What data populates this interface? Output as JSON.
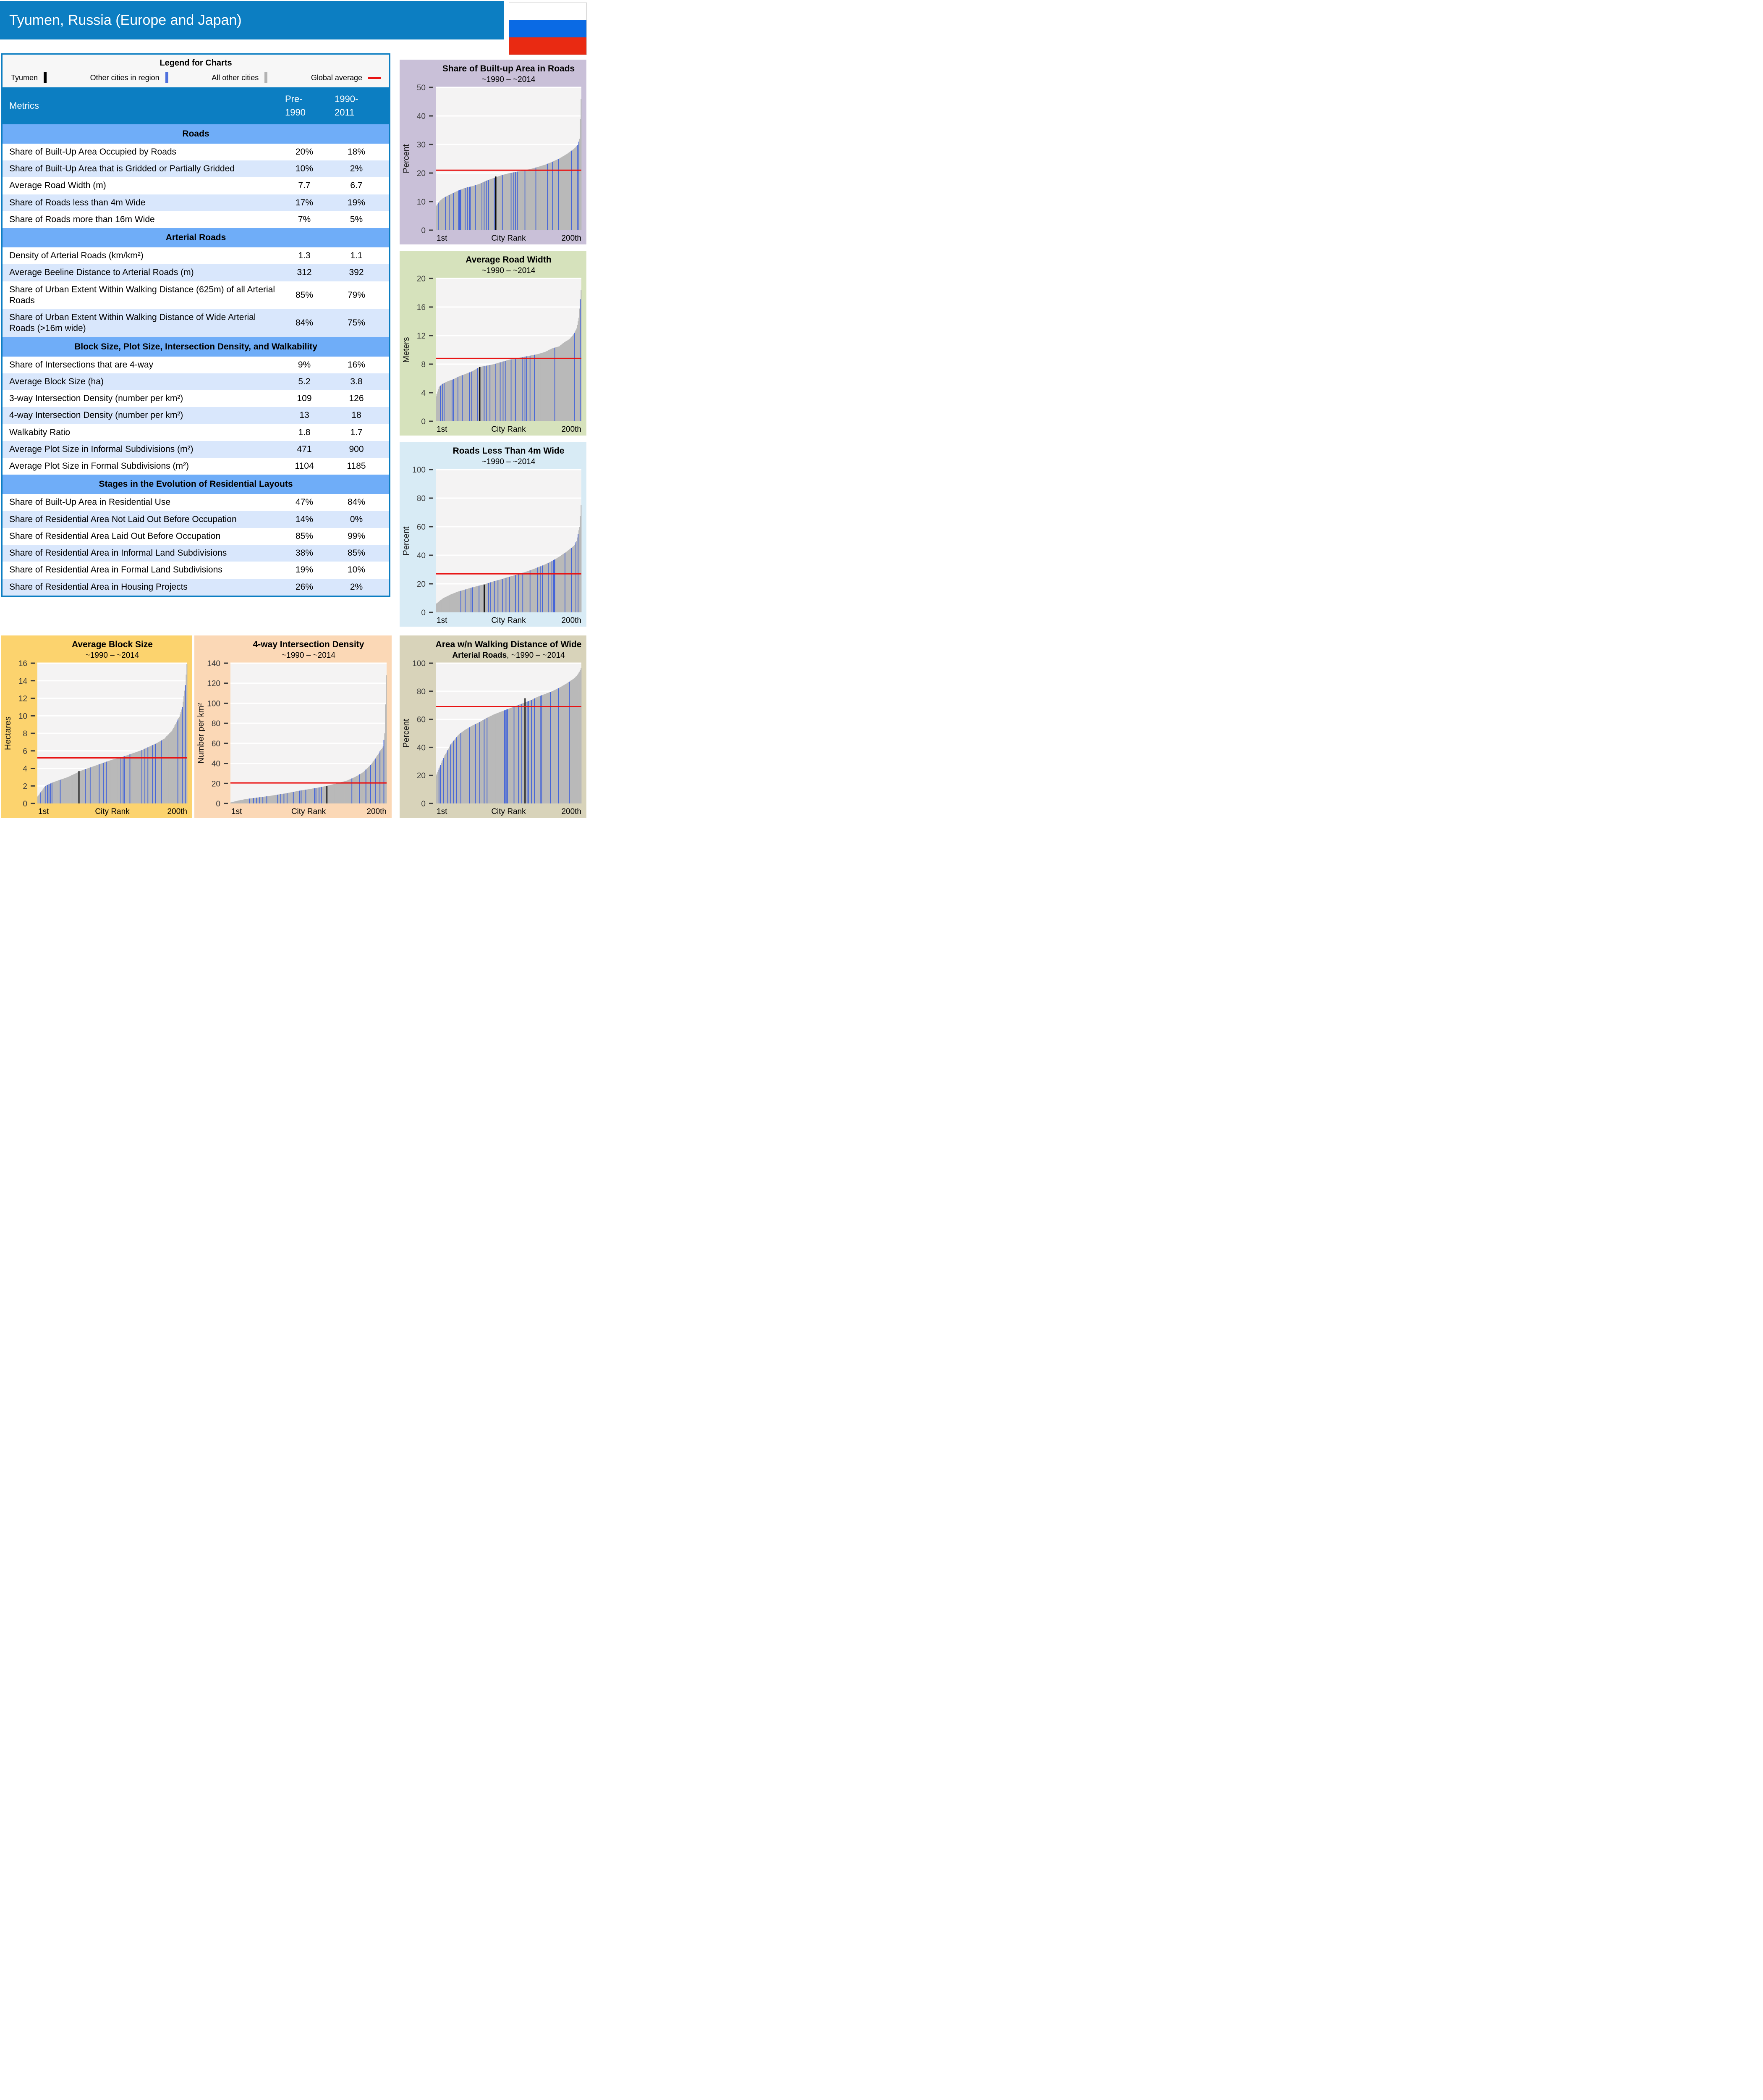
{
  "header": {
    "title": "Tyumen, Russia (Europe and Japan)",
    "flag_icon": "russia-flag",
    "flag_colors": [
      "#ffffff",
      "#0a6ae4",
      "#e92a12"
    ]
  },
  "colors": {
    "header_blue": "#0c7ec2",
    "section_blue": "#6fadf8",
    "row_alt_blue": "#d9e7fc",
    "bar_gray": "#b9b9b9",
    "bar_blue": "#4565d8",
    "bar_black": "#000000",
    "avg_red": "#e81313",
    "plot_bg": "#f4f3f3",
    "grid_white": "#ffffff",
    "tick_text": "#3c3c3c"
  },
  "legend": {
    "title": "Legend for Charts",
    "items": [
      {
        "label": "Tyumen",
        "color": "#000000",
        "shape": "bar"
      },
      {
        "label": "Other cities in region",
        "color": "#4f70dd",
        "shape": "bar"
      },
      {
        "label": "All other cities",
        "color": "#b3b3b3",
        "shape": "bar"
      },
      {
        "label": "Global average",
        "color": "#e81313",
        "shape": "line"
      }
    ]
  },
  "table": {
    "header": {
      "metrics": "Metrics",
      "col1": "Pre-\n1990",
      "col2": "1990-\n2011"
    },
    "sections": [
      {
        "title": "Roads",
        "rows": [
          {
            "label": "Share of Built-Up Area Occupied by Roads",
            "pre1990": "20%",
            "y1990_2011": "18%"
          },
          {
            "label": "Share of Built-Up Area that is Gridded or Partially Gridded",
            "pre1990": "10%",
            "y1990_2011": "2%"
          },
          {
            "label": "Average Road Width (m)",
            "pre1990": "7.7",
            "y1990_2011": "6.7"
          },
          {
            "label": "Share of Roads less than 4m Wide",
            "pre1990": "17%",
            "y1990_2011": "19%"
          },
          {
            "label": "Share of Roads more than 16m Wide",
            "pre1990": "7%",
            "y1990_2011": "5%"
          }
        ]
      },
      {
        "title": "Arterial Roads",
        "rows": [
          {
            "label": "Density of Arterial Roads (km/km²)",
            "pre1990": "1.3",
            "y1990_2011": "1.1"
          },
          {
            "label": "Average Beeline Distance to Arterial Roads (m)",
            "pre1990": "312",
            "y1990_2011": "392"
          },
          {
            "label": "Share of Urban Extent Within Walking Distance (625m) of all Arterial Roads",
            "pre1990": "85%",
            "y1990_2011": "79%"
          },
          {
            "label": "Share of Urban Extent Within Walking Distance of Wide Arterial Roads (>16m wide)",
            "pre1990": "84%",
            "y1990_2011": "75%"
          }
        ]
      },
      {
        "title": "Block Size, Plot Size, Intersection Density, and Walkability",
        "rows": [
          {
            "label": "Share of Intersections that are 4-way",
            "pre1990": "9%",
            "y1990_2011": "16%"
          },
          {
            "label": "Average Block Size (ha)",
            "pre1990": "5.2",
            "y1990_2011": "3.8"
          },
          {
            "label": "3-way Intersection Density (number per km²)",
            "pre1990": "109",
            "y1990_2011": "126"
          },
          {
            "label": "4-way Intersection Density (number per km²)",
            "pre1990": "13",
            "y1990_2011": "18"
          },
          {
            "label": "Walkabity Ratio",
            "pre1990": "1.8",
            "y1990_2011": "1.7"
          },
          {
            "label": "Average Plot Size in Informal Subdivisions (m²)",
            "pre1990": "471",
            "y1990_2011": "900"
          },
          {
            "label": "Average Plot Size in Formal Subdivisions (m²)",
            "pre1990": "1104",
            "y1990_2011": "1185"
          }
        ]
      },
      {
        "title": "Stages in the Evolution of Residential Layouts",
        "rows": [
          {
            "label": "Share of Built-Up Area in Residential Use",
            "pre1990": "47%",
            "y1990_2011": "84%"
          },
          {
            "label": "Share of Residential Area Not Laid Out Before Occupation",
            "pre1990": "14%",
            "y1990_2011": "0%"
          },
          {
            "label": "Share of Residential Area Laid Out Before Occupation",
            "pre1990": "85%",
            "y1990_2011": "99%"
          },
          {
            "label": "Share of Residential Area in Informal Land Subdivisions",
            "pre1990": "38%",
            "y1990_2011": "85%"
          },
          {
            "label": "Share of Residential Area in Formal Land Subdivisions",
            "pre1990": "19%",
            "y1990_2011": "10%"
          },
          {
            "label": "Share of Residential Area in Housing Projects",
            "pre1990": "26%",
            "y1990_2011": "2%"
          }
        ]
      }
    ]
  },
  "chart_data": [
    {
      "id": "share-built-up-area-in-roads",
      "type": "bar",
      "title": "Share of Built-up Area in Roads",
      "subtitle": "~1990 – ~2014",
      "panel_bg": "#c9c0d8",
      "ylabel": "Percent",
      "ylim": [
        0,
        50
      ],
      "yticks": [
        0,
        10,
        20,
        30,
        40,
        50
      ],
      "xlabels": {
        "left": "1st",
        "center": "City Rank",
        "right": "200th"
      },
      "global_average": 21,
      "tyumen": {
        "frac": 0.41,
        "value": 18.8
      },
      "profile": [
        [
          0,
          8.5
        ],
        [
          0.02,
          10
        ],
        [
          0.05,
          11.3
        ],
        [
          0.1,
          12.6
        ],
        [
          0.15,
          13.8
        ],
        [
          0.2,
          14.8
        ],
        [
          0.25,
          15.4
        ],
        [
          0.3,
          16.2
        ],
        [
          0.35,
          17.4
        ],
        [
          0.4,
          18.3
        ],
        [
          0.45,
          19.2
        ],
        [
          0.5,
          19.9
        ],
        [
          0.55,
          20.4
        ],
        [
          0.6,
          20.9
        ],
        [
          0.65,
          21.4
        ],
        [
          0.7,
          22.1
        ],
        [
          0.75,
          22.9
        ],
        [
          0.8,
          23.9
        ],
        [
          0.85,
          25.1
        ],
        [
          0.9,
          26.6
        ],
        [
          0.95,
          28.4
        ],
        [
          0.98,
          30.0
        ],
        [
          0.99,
          32.0
        ],
        [
          1,
          46
        ]
      ],
      "blue_fracs": [
        0.015,
        0.065,
        0.09,
        0.12,
        0.155,
        0.16,
        0.165,
        0.17,
        0.2,
        0.215,
        0.23,
        0.235,
        0.27,
        0.315,
        0.33,
        0.345,
        0.36,
        0.4,
        0.455,
        0.52,
        0.535,
        0.55,
        0.565,
        0.615,
        0.69,
        0.77,
        0.805,
        0.845,
        0.935,
        0.975,
        0.985
      ]
    },
    {
      "id": "average-road-width",
      "type": "bar",
      "title": "Average Road Width",
      "subtitle": "~1990 – ~2014",
      "panel_bg": "#d6e2bc",
      "ylabel": "Meters",
      "ylim": [
        0,
        20
      ],
      "yticks": [
        0,
        4,
        8,
        12,
        16,
        20
      ],
      "xlabels": {
        "left": "1st",
        "center": "City Rank",
        "right": "200th"
      },
      "global_average": 8.8,
      "tyumen": {
        "frac": 0.3,
        "value": 7.6
      },
      "profile": [
        [
          0,
          3.5
        ],
        [
          0.02,
          4.8
        ],
        [
          0.04,
          5.2
        ],
        [
          0.08,
          5.6
        ],
        [
          0.12,
          5.9
        ],
        [
          0.16,
          6.3
        ],
        [
          0.2,
          6.6
        ],
        [
          0.25,
          7.0
        ],
        [
          0.3,
          7.6
        ],
        [
          0.35,
          7.8
        ],
        [
          0.4,
          8.0
        ],
        [
          0.45,
          8.3
        ],
        [
          0.5,
          8.6
        ],
        [
          0.55,
          8.8
        ],
        [
          0.6,
          9.0
        ],
        [
          0.65,
          9.2
        ],
        [
          0.7,
          9.4
        ],
        [
          0.75,
          9.7
        ],
        [
          0.8,
          10.2
        ],
        [
          0.85,
          10.5
        ],
        [
          0.88,
          11.0
        ],
        [
          0.92,
          11.5
        ],
        [
          0.95,
          12.2
        ],
        [
          0.97,
          13.0
        ],
        [
          0.985,
          14.5
        ],
        [
          1,
          18.4
        ]
      ],
      "blue_fracs": [
        0.03,
        0.045,
        0.055,
        0.11,
        0.12,
        0.15,
        0.18,
        0.23,
        0.245,
        0.285,
        0.33,
        0.345,
        0.37,
        0.41,
        0.44,
        0.46,
        0.475,
        0.52,
        0.55,
        0.6,
        0.615,
        0.625,
        0.65,
        0.68,
        0.82,
        0.955,
        0.995
      ]
    },
    {
      "id": "roads-less-than-4m-wide",
      "type": "bar",
      "title": "Roads Less Than 4m Wide",
      "subtitle": "~1990 – ~2014",
      "panel_bg": "#d8ebf5",
      "ylabel": "Percent",
      "ylim": [
        0,
        100
      ],
      "yticks": [
        0,
        20,
        40,
        60,
        80,
        100
      ],
      "xlabels": {
        "left": "1st",
        "center": "City Rank",
        "right": "200th"
      },
      "global_average": 27,
      "tyumen": {
        "frac": 0.33,
        "value": 19.5
      },
      "profile": [
        [
          0,
          6
        ],
        [
          0.03,
          8.5
        ],
        [
          0.05,
          10
        ],
        [
          0.1,
          12.5
        ],
        [
          0.15,
          14.5
        ],
        [
          0.2,
          16
        ],
        [
          0.25,
          17.5
        ],
        [
          0.3,
          18.8
        ],
        [
          0.35,
          20.2
        ],
        [
          0.4,
          21.8
        ],
        [
          0.45,
          23.2
        ],
        [
          0.5,
          24.8
        ],
        [
          0.55,
          26.2
        ],
        [
          0.6,
          27.8
        ],
        [
          0.65,
          29.5
        ],
        [
          0.7,
          31.5
        ],
        [
          0.75,
          33.5
        ],
        [
          0.8,
          36
        ],
        [
          0.85,
          39
        ],
        [
          0.9,
          42.5
        ],
        [
          0.95,
          46.5
        ],
        [
          0.97,
          50
        ],
        [
          0.99,
          60
        ],
        [
          1,
          75
        ]
      ],
      "blue_fracs": [
        0.17,
        0.2,
        0.24,
        0.25,
        0.295,
        0.36,
        0.375,
        0.4,
        0.425,
        0.455,
        0.48,
        0.51,
        0.55,
        0.57,
        0.6,
        0.65,
        0.7,
        0.72,
        0.735,
        0.775,
        0.8,
        0.81,
        0.815,
        0.82,
        0.89,
        0.935,
        0.965,
        0.98
      ]
    },
    {
      "id": "average-block-size",
      "type": "bar",
      "title": "Average Block Size",
      "subtitle": "~1990 – ~2014",
      "panel_bg": "#fcd36e",
      "ylabel": "Hectares",
      "ylim": [
        0,
        16
      ],
      "yticks": [
        0,
        2,
        4,
        6,
        8,
        10,
        12,
        14,
        16
      ],
      "xlabels": {
        "left": "1st",
        "center": "City Rank",
        "right": "200th"
      },
      "global_average": 5.2,
      "tyumen": {
        "frac": 0.275,
        "value": 3.7
      },
      "profile": [
        [
          0,
          0.8
        ],
        [
          0.03,
          1.5
        ],
        [
          0.05,
          2.0
        ],
        [
          0.1,
          2.4
        ],
        [
          0.15,
          2.7
        ],
        [
          0.2,
          3.0
        ],
        [
          0.25,
          3.4
        ],
        [
          0.3,
          3.8
        ],
        [
          0.35,
          4.1
        ],
        [
          0.4,
          4.4
        ],
        [
          0.45,
          4.7
        ],
        [
          0.5,
          5.0
        ],
        [
          0.55,
          5.2
        ],
        [
          0.6,
          5.5
        ],
        [
          0.65,
          5.8
        ],
        [
          0.7,
          6.1
        ],
        [
          0.75,
          6.5
        ],
        [
          0.8,
          6.9
        ],
        [
          0.85,
          7.4
        ],
        [
          0.9,
          8.3
        ],
        [
          0.95,
          9.9
        ],
        [
          0.97,
          11.0
        ],
        [
          0.99,
          13.5
        ],
        [
          1,
          15.9
        ]
      ],
      "blue_fracs": [
        0.02,
        0.05,
        0.065,
        0.075,
        0.085,
        0.095,
        0.15,
        0.32,
        0.35,
        0.41,
        0.44,
        0.46,
        0.56,
        0.575,
        0.585,
        0.62,
        0.7,
        0.72,
        0.74,
        0.77,
        0.79,
        0.83,
        0.94,
        0.97,
        0.99
      ]
    },
    {
      "id": "4-way-intersection-density",
      "type": "bar",
      "title": "4-way Intersection Density",
      "subtitle": "~1990 – ~2014",
      "panel_bg": "#fbd8b6",
      "ylabel": "Number per km²",
      "ylim": [
        0,
        140
      ],
      "yticks": [
        0,
        20,
        40,
        60,
        80,
        100,
        120,
        140
      ],
      "xlabels": {
        "left": "1st",
        "center": "City Rank",
        "right": "200th"
      },
      "global_average": 20.5,
      "tyumen": {
        "frac": 0.62,
        "value": 17.5
      },
      "profile": [
        [
          0,
          1
        ],
        [
          0.05,
          3
        ],
        [
          0.1,
          4.5
        ],
        [
          0.15,
          5.5
        ],
        [
          0.2,
          6.5
        ],
        [
          0.25,
          7.5
        ],
        [
          0.3,
          8.8
        ],
        [
          0.35,
          10
        ],
        [
          0.4,
          11.5
        ],
        [
          0.45,
          13
        ],
        [
          0.5,
          14.2
        ],
        [
          0.55,
          15.5
        ],
        [
          0.6,
          17
        ],
        [
          0.65,
          18.8
        ],
        [
          0.7,
          20.8
        ],
        [
          0.75,
          23
        ],
        [
          0.8,
          26.5
        ],
        [
          0.85,
          31
        ],
        [
          0.9,
          38.5
        ],
        [
          0.93,
          45
        ],
        [
          0.96,
          52
        ],
        [
          0.98,
          57
        ],
        [
          0.99,
          70
        ],
        [
          1,
          128
        ]
      ],
      "blue_fracs": [
        0.12,
        0.145,
        0.165,
        0.185,
        0.205,
        0.23,
        0.3,
        0.32,
        0.34,
        0.36,
        0.4,
        0.44,
        0.45,
        0.48,
        0.54,
        0.55,
        0.57,
        0.585,
        0.78,
        0.83,
        0.87,
        0.9,
        0.93,
        0.96,
        0.985
      ]
    },
    {
      "id": "area-walking-distance-wide-arterial",
      "type": "bar",
      "title": "Area w/n Walking Distance of Wide",
      "title2_bold": "Arterial Roads",
      "title2_rest": ", ~1990 – ~2014",
      "subtitle": "",
      "panel_bg": "#d8d3ba",
      "ylabel": "Percent",
      "ylim": [
        0,
        100
      ],
      "yticks": [
        0,
        20,
        40,
        60,
        80,
        100
      ],
      "xlabels": {
        "left": "1st",
        "center": "City Rank",
        "right": "200th"
      },
      "global_average": 69,
      "tyumen": {
        "frac": 0.615,
        "value": 75
      },
      "profile": [
        [
          0,
          20
        ],
        [
          0.02,
          25
        ],
        [
          0.04,
          30
        ],
        [
          0.06,
          34.5
        ],
        [
          0.08,
          38
        ],
        [
          0.1,
          42
        ],
        [
          0.13,
          46
        ],
        [
          0.16,
          49.5
        ],
        [
          0.2,
          52.5
        ],
        [
          0.25,
          55.5
        ],
        [
          0.3,
          58
        ],
        [
          0.35,
          61
        ],
        [
          0.4,
          63.5
        ],
        [
          0.45,
          65.5
        ],
        [
          0.5,
          67.5
        ],
        [
          0.55,
          69.5
        ],
        [
          0.6,
          71.5
        ],
        [
          0.65,
          73.5
        ],
        [
          0.7,
          76
        ],
        [
          0.75,
          78
        ],
        [
          0.8,
          80
        ],
        [
          0.85,
          82.5
        ],
        [
          0.9,
          85.5
        ],
        [
          0.95,
          89
        ],
        [
          0.97,
          91
        ],
        [
          0.99,
          94
        ],
        [
          1,
          96.5
        ]
      ],
      "blue_fracs": [
        0.02,
        0.03,
        0.05,
        0.08,
        0.1,
        0.12,
        0.14,
        0.17,
        0.23,
        0.27,
        0.3,
        0.33,
        0.35,
        0.47,
        0.475,
        0.485,
        0.49,
        0.54,
        0.57,
        0.59,
        0.63,
        0.64,
        0.66,
        0.68,
        0.72,
        0.73,
        0.79,
        0.845,
        0.92
      ]
    }
  ]
}
